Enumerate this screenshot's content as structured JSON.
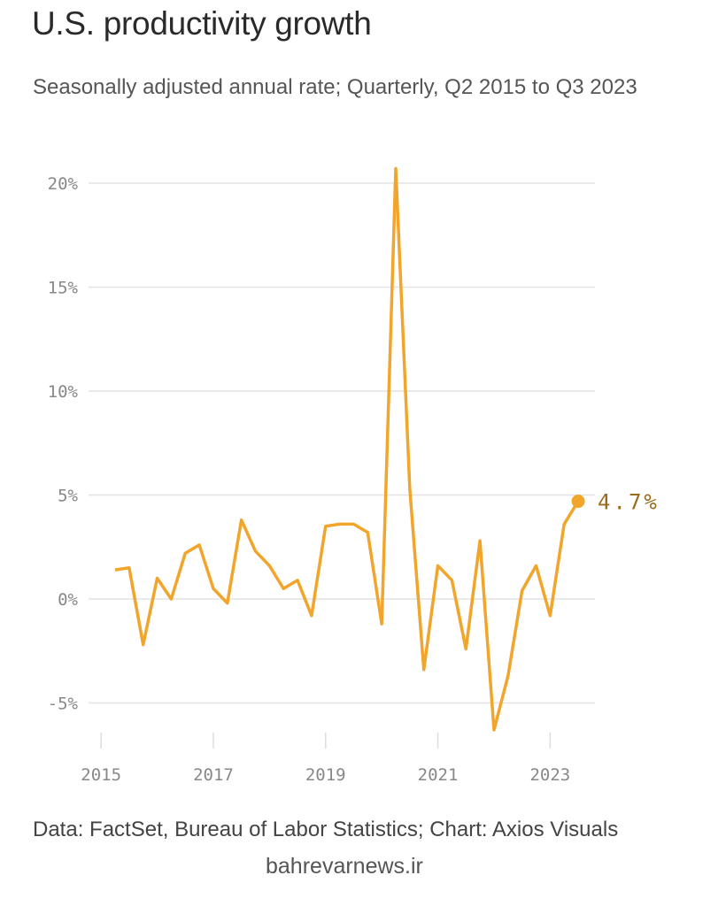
{
  "chart_data": {
    "type": "line",
    "title": "U.S. productivity growth",
    "subtitle": "Seasonally adjusted annual rate; Quarterly, Q2 2015 to Q3 2023",
    "source": "Data: FactSet, Bureau of Labor Statistics; Chart: Axios Visuals",
    "xlabel": "",
    "ylabel": "",
    "ylim": [
      -7,
      21
    ],
    "y_ticks": [
      -5,
      0,
      5,
      10,
      15,
      20
    ],
    "y_tick_labels": [
      "-5%",
      "0%",
      "5%",
      "10%",
      "15%",
      "20%"
    ],
    "x_ticks": [
      2015,
      2017,
      2019,
      2021,
      2023
    ],
    "x_tick_labels": [
      "2015",
      "2017",
      "2019",
      "2021",
      "2023"
    ],
    "grid": true,
    "series": [
      {
        "name": "Productivity growth",
        "color": "#F2A52B",
        "start": "Q2 2015",
        "values": [
          1.4,
          1.5,
          -2.2,
          1.0,
          0.0,
          2.2,
          2.6,
          0.5,
          -0.2,
          3.8,
          2.3,
          1.6,
          0.5,
          0.9,
          -0.8,
          3.5,
          3.6,
          3.6,
          3.2,
          -1.2,
          20.7,
          5.3,
          -3.4,
          1.6,
          0.9,
          -2.4,
          2.8,
          -6.3,
          -3.7,
          0.4,
          1.6,
          -0.8,
          3.6,
          4.7
        ]
      }
    ],
    "end_label": "4.7%"
  },
  "watermark": "bahrevarnews.ir"
}
